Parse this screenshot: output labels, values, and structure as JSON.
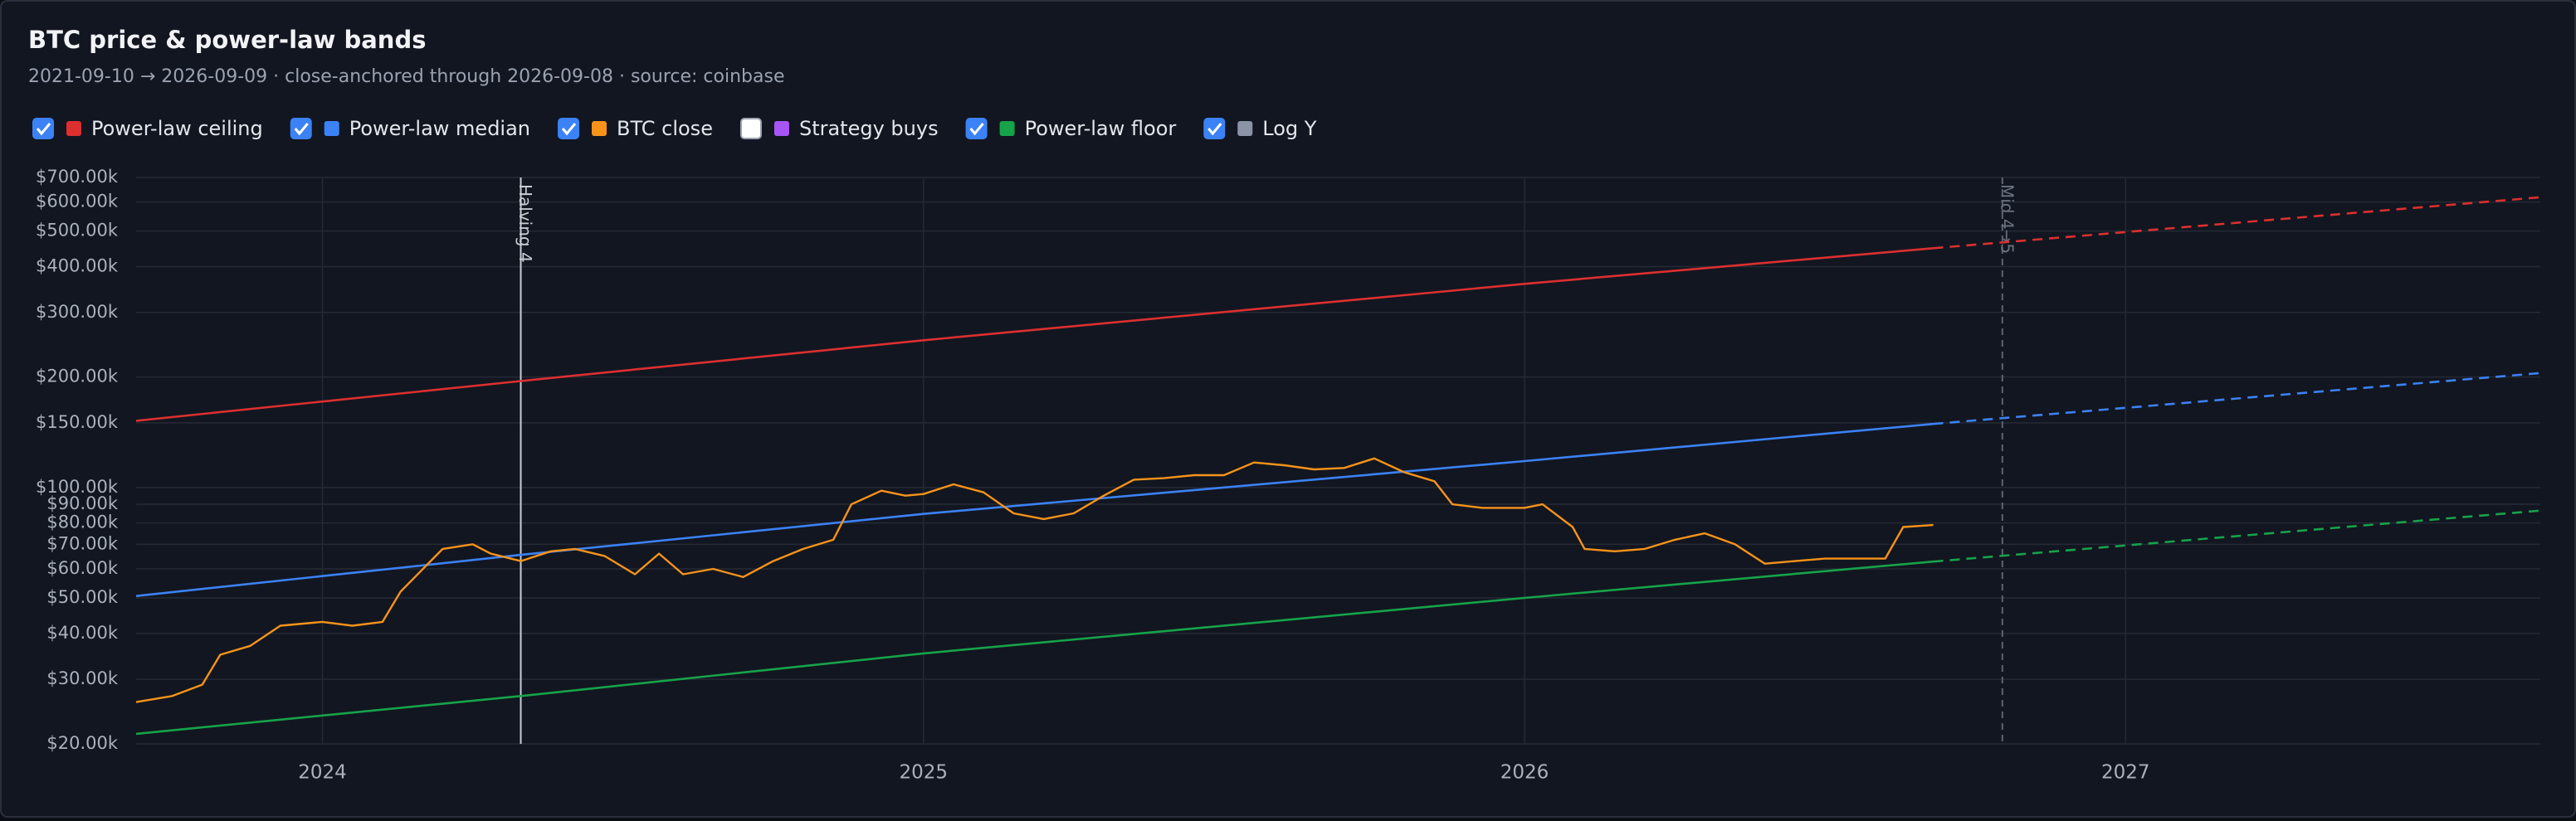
{
  "chart_data": {
    "type": "line",
    "title": "BTC price & power-law bands",
    "subtitle": "2021-09-10 → 2026-09-09 · close-anchored through 2026-09-08 · source: coinbase",
    "log_y": {
      "label": "Log Y",
      "checked": true,
      "color": "#8b93a7"
    },
    "dashed_from": 2026.68,
    "xlim": [
      2023.69,
      2027.69
    ],
    "xticks": [
      2024,
      2025,
      2026,
      2027
    ],
    "ylim": [
      20000,
      700000
    ],
    "yticks": [
      {
        "value": 20000,
        "label": "$20.00k"
      },
      {
        "value": 30000,
        "label": "$30.00k"
      },
      {
        "value": 40000,
        "label": "$40.00k"
      },
      {
        "value": 50000,
        "label": "$50.00k"
      },
      {
        "value": 60000,
        "label": "$60.00k"
      },
      {
        "value": 70000,
        "label": "$70.00k"
      },
      {
        "value": 80000,
        "label": "$80.00k"
      },
      {
        "value": 90000,
        "label": "$90.00k"
      },
      {
        "value": 100000,
        "label": "$100.00k"
      },
      {
        "value": 150000,
        "label": "$150.00k"
      },
      {
        "value": 200000,
        "label": "$200.00k"
      },
      {
        "value": 300000,
        "label": "$300.00k"
      },
      {
        "value": 400000,
        "label": "$400.00k"
      },
      {
        "value": 500000,
        "label": "$500.00k"
      },
      {
        "value": 600000,
        "label": "$600.00k"
      },
      {
        "value": 700000,
        "label": "$700.00k"
      }
    ],
    "grid": true,
    "series": [
      {
        "name": "Power-law ceiling",
        "color": "#dc2f2f",
        "checked": true,
        "x": [
          2023.69,
          2024.33,
          2025.0,
          2026.0,
          2026.68,
          2027.69
        ],
        "values": [
          152000,
          195000,
          252000,
          359000,
          449000,
          618000
        ]
      },
      {
        "name": "Power-law median",
        "color": "#3b82f6",
        "checked": true,
        "x": [
          2023.69,
          2024.33,
          2025.0,
          2026.0,
          2026.68,
          2027.69
        ],
        "values": [
          50600,
          65500,
          84700,
          118000,
          149000,
          205000
        ]
      },
      {
        "name": "BTC close",
        "color": "#f7931a",
        "checked": true,
        "x": [
          2023.69,
          2023.75,
          2023.8,
          2023.83,
          2023.88,
          2023.93,
          2024.0,
          2024.05,
          2024.1,
          2024.13,
          2024.18,
          2024.2,
          2024.25,
          2024.28,
          2024.33,
          2024.38,
          2024.42,
          2024.47,
          2024.52,
          2024.56,
          2024.6,
          2024.65,
          2024.7,
          2024.75,
          2024.8,
          2024.85,
          2024.88,
          2024.93,
          2024.97,
          2025.0,
          2025.05,
          2025.1,
          2025.15,
          2025.2,
          2025.25,
          2025.3,
          2025.35,
          2025.4,
          2025.45,
          2025.5,
          2025.55,
          2025.6,
          2025.65,
          2025.7,
          2025.75,
          2025.8,
          2025.85,
          2025.88,
          2025.93,
          2026.0,
          2026.03,
          2026.08,
          2026.1,
          2026.15,
          2026.2,
          2026.25,
          2026.3,
          2026.35,
          2026.4,
          2026.45,
          2026.5,
          2026.6,
          2026.63,
          2026.68
        ],
        "values": [
          26000,
          27000,
          29000,
          35000,
          37000,
          42000,
          43000,
          42000,
          43000,
          52000,
          63000,
          68000,
          70000,
          66000,
          63000,
          67000,
          68000,
          65000,
          58000,
          66000,
          58000,
          60000,
          57000,
          63000,
          68000,
          72000,
          90000,
          98000,
          95000,
          96000,
          102000,
          97000,
          85000,
          82000,
          85000,
          95000,
          105000,
          106000,
          108000,
          108000,
          117000,
          115000,
          112000,
          113000,
          120000,
          110000,
          104000,
          90000,
          88000,
          88000,
          90000,
          78000,
          68000,
          67000,
          68000,
          72000,
          75000,
          70000,
          62000,
          63000,
          64000,
          64000,
          78000,
          79000
        ]
      },
      {
        "name": "Strategy buys",
        "color": "#a855f7",
        "checked": false,
        "x": [],
        "values": []
      },
      {
        "name": "Power-law floor",
        "color": "#16a34a",
        "checked": true,
        "x": [
          2023.69,
          2024.33,
          2025.0,
          2026.0,
          2026.68,
          2027.69
        ],
        "values": [
          21300,
          27000,
          35300,
          50000,
          62800,
          86500
        ]
      }
    ],
    "annotations": [
      {
        "x": 2024.33,
        "label": "Halving 4",
        "style": "solid"
      },
      {
        "x": 2026.795,
        "label": "Mid 4→5",
        "style": "dashed"
      }
    ]
  }
}
